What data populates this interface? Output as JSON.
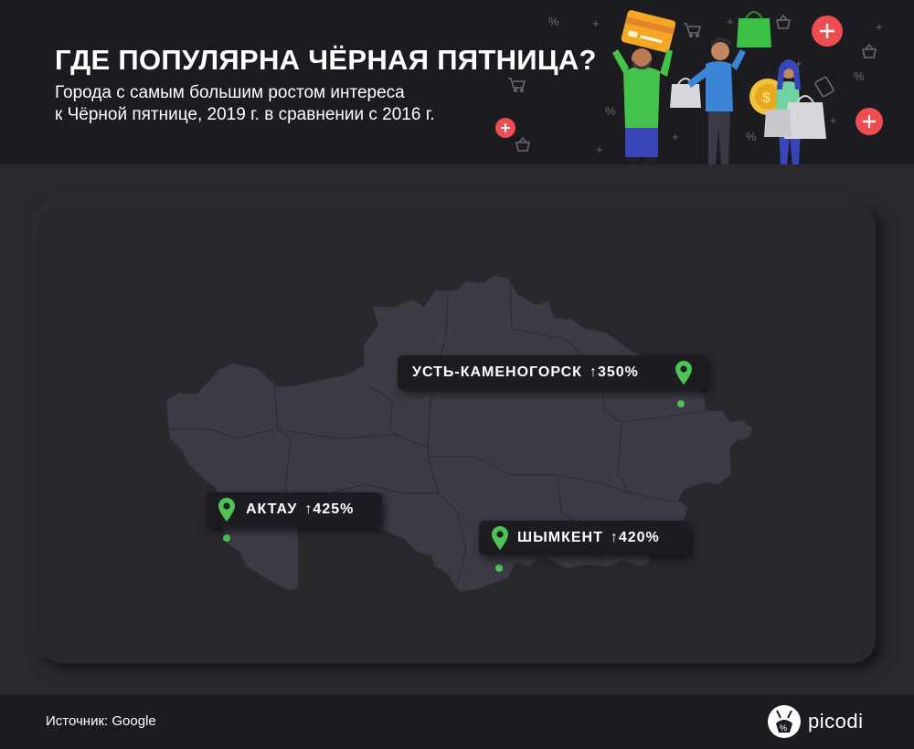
{
  "header": {
    "title": "ГДЕ ПОПУЛЯРНА ЧЁРНАЯ ПЯТНИЦА?",
    "subtitle_line1": "Города с самым большим ростом интереса",
    "subtitle_line2": "к Чёрной пятнице, 2019 г. в сравнении с 2016 г."
  },
  "map": {
    "region": "Kazakhstan",
    "cities": [
      {
        "name": "УСТЬ-КАМЕНОГОРСК",
        "growth": "↑350%"
      },
      {
        "name": "АКТАУ",
        "growth": "↑425%"
      },
      {
        "name": "ШЫМКЕНТ",
        "growth": "↑420%"
      }
    ]
  },
  "footer": {
    "source": "Источник: Google",
    "logo": "picodi"
  },
  "colors": {
    "background": "#2a292e",
    "header": "#1c1b20",
    "map_fill": "#3d3b45",
    "accent_green": "#4cc354",
    "plus_red": "#ee4d52"
  },
  "icons": [
    "location-pin-icon",
    "plus-icon",
    "shopping-cart-icon",
    "shopping-basket-icon",
    "percent-icon",
    "picodi-logo-icon"
  ]
}
